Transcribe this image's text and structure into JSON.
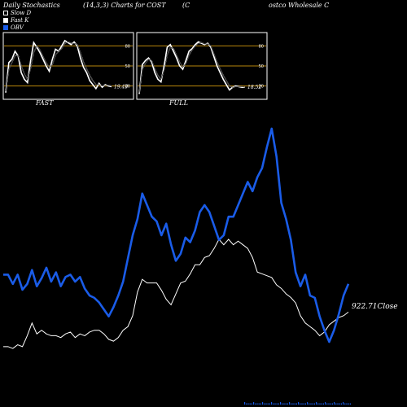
{
  "header": {
    "title": "Daily Stochastics",
    "params": "(14,3,3) Charts for COST",
    "company_prefix": "(C",
    "company_rest": "ostco  Wholesale  C"
  },
  "legend": {
    "items": [
      {
        "label": "Slow  D",
        "color": "#000000"
      },
      {
        "label": "Fast K",
        "color": "#ffffff"
      },
      {
        "label": "OBV",
        "color": "#1a5ce8"
      }
    ]
  },
  "colors": {
    "obv": "#1a5ce8",
    "price": "#ffffff",
    "grid": "#b8860b",
    "background": "#000000",
    "panel_border": "#ffffff"
  },
  "chart_data": [
    {
      "type": "line",
      "title": "FAST",
      "y_ticks": [
        20,
        50,
        80
      ],
      "ylim": [
        0,
        100
      ],
      "last_value_label": "19.49",
      "series": [
        {
          "name": "Fast K",
          "values": [
            10,
            55,
            60,
            72,
            65,
            40,
            30,
            25,
            58,
            85,
            78,
            70,
            60,
            50,
            42,
            60,
            75,
            72,
            80,
            88,
            85,
            82,
            86,
            80,
            62,
            48,
            40,
            28,
            22,
            16,
            24,
            18,
            22,
            20,
            19
          ]
        },
        {
          "name": "Slow D",
          "values": [
            12,
            45,
            55,
            65,
            66,
            50,
            38,
            30,
            46,
            70,
            80,
            74,
            64,
            55,
            48,
            52,
            66,
            72,
            76,
            84,
            86,
            84,
            84,
            82,
            70,
            56,
            46,
            36,
            28,
            22,
            22,
            20,
            21,
            21,
            20
          ]
        }
      ]
    },
    {
      "type": "line",
      "title": "FULL",
      "y_ticks": [
        20,
        50,
        80
      ],
      "ylim": [
        0,
        100
      ],
      "last_value_label": "18.52",
      "series": [
        {
          "name": "Fast K",
          "values": [
            8,
            52,
            58,
            62,
            56,
            40,
            30,
            26,
            50,
            78,
            82,
            72,
            62,
            50,
            45,
            58,
            72,
            76,
            82,
            86,
            84,
            82,
            84,
            78,
            64,
            50,
            40,
            30,
            22,
            14,
            18,
            20,
            19,
            18,
            18
          ]
        },
        {
          "name": "Slow D",
          "values": [
            10,
            45,
            54,
            60,
            58,
            46,
            36,
            30,
            44,
            66,
            78,
            76,
            66,
            56,
            48,
            54,
            66,
            74,
            80,
            84,
            85,
            83,
            83,
            80,
            68,
            56,
            46,
            36,
            28,
            20,
            18,
            19,
            19,
            19,
            18
          ]
        }
      ]
    },
    {
      "type": "line",
      "title": "",
      "last_value_label": "922.71",
      "last_value_suffix": "Close",
      "series": [
        {
          "name": "OBV",
          "values": [
            58,
            58,
            50,
            58,
            45,
            50,
            62,
            48,
            55,
            64,
            52,
            60,
            48,
            56,
            58,
            52,
            56,
            46,
            40,
            38,
            34,
            28,
            22,
            30,
            40,
            52,
            72,
            92,
            106,
            128,
            118,
            108,
            104,
            92,
            102,
            84,
            70,
            76,
            90,
            86,
            96,
            112,
            118,
            112,
            100,
            88,
            92,
            108,
            108,
            118,
            128,
            138,
            130,
            142,
            150,
            168,
            184,
            160,
            120,
            106,
            88,
            60,
            48,
            58,
            40,
            38,
            22,
            10,
            0,
            10,
            24,
            40,
            50
          ]
        },
        {
          "name": "Close",
          "values": [
            10,
            10,
            8,
            12,
            10,
            22,
            36,
            24,
            28,
            24,
            22,
            22,
            20,
            24,
            26,
            20,
            24,
            22,
            26,
            28,
            28,
            24,
            18,
            16,
            20,
            28,
            32,
            44,
            70,
            84,
            80,
            80,
            80,
            72,
            62,
            56,
            68,
            80,
            82,
            90,
            100,
            100,
            108,
            110,
            118,
            128,
            122,
            128,
            122,
            126,
            122,
            118,
            108,
            92,
            90,
            88,
            86,
            78,
            74,
            68,
            64,
            58,
            44,
            36,
            32,
            28,
            22,
            26,
            34,
            38,
            42,
            44,
            48
          ]
        }
      ]
    }
  ]
}
